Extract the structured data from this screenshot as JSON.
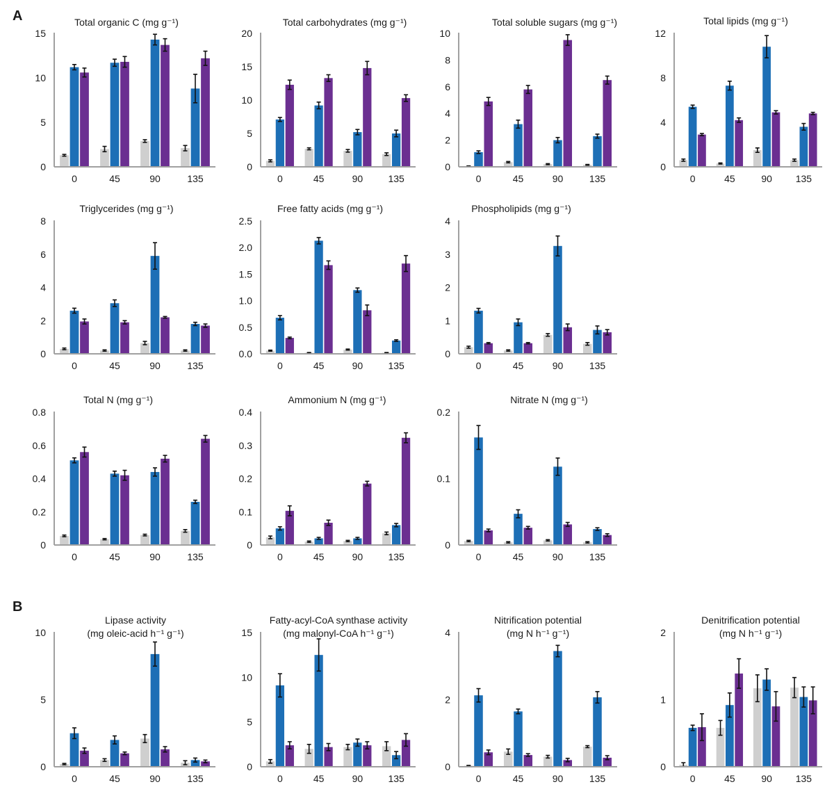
{
  "panel_labels": [
    "A",
    "B"
  ],
  "series": [
    {
      "name": "gray",
      "color": "#cfcfcf"
    },
    {
      "name": "blue",
      "color": "#1d6fb6"
    },
    {
      "name": "purple",
      "color": "#6b2f91"
    }
  ],
  "chart_data": [
    {
      "type": "bar",
      "title": "Total organic C (mg g⁻¹)",
      "categories": [
        "0",
        "45",
        "90",
        "135"
      ],
      "ylim": [
        0,
        15
      ],
      "yticks": [
        "0",
        "5",
        "10",
        "15"
      ],
      "series": [
        {
          "name": "gray",
          "values": [
            1.3,
            2.0,
            2.9,
            2.1
          ],
          "errors": [
            0.1,
            0.3,
            0.15,
            0.3
          ]
        },
        {
          "name": "blue",
          "values": [
            11.2,
            11.7,
            14.3,
            8.8
          ],
          "errors": [
            0.3,
            0.4,
            0.6,
            1.6
          ]
        },
        {
          "name": "purple",
          "values": [
            10.6,
            11.8,
            13.7,
            12.2
          ],
          "errors": [
            0.5,
            0.6,
            0.7,
            0.8
          ]
        }
      ]
    },
    {
      "type": "bar",
      "title": "Total carbohydrates (mg g⁻¹)",
      "categories": [
        "0",
        "45",
        "90",
        "135"
      ],
      "ylim": [
        0,
        20
      ],
      "yticks": [
        "0",
        "5",
        "10",
        "15",
        "20"
      ],
      "series": [
        {
          "name": "gray",
          "values": [
            0.9,
            2.7,
            2.4,
            1.9
          ],
          "errors": [
            0.15,
            0.15,
            0.2,
            0.2
          ]
        },
        {
          "name": "blue",
          "values": [
            7.1,
            9.2,
            5.2,
            5.0
          ],
          "errors": [
            0.3,
            0.5,
            0.4,
            0.5
          ]
        },
        {
          "name": "purple",
          "values": [
            12.3,
            13.3,
            14.8,
            10.3
          ],
          "errors": [
            0.7,
            0.5,
            1.0,
            0.5
          ]
        }
      ]
    },
    {
      "type": "bar",
      "title": "Total soluble sugars (mg g⁻¹)",
      "categories": [
        "0",
        "45",
        "90",
        "135"
      ],
      "ylim": [
        0,
        10
      ],
      "yticks": [
        "0",
        "2",
        "4",
        "6",
        "8",
        "10"
      ],
      "series": [
        {
          "name": "gray",
          "values": [
            0.05,
            0.35,
            0.2,
            0.15
          ],
          "errors": [
            0.02,
            0.05,
            0.04,
            0.03
          ]
        },
        {
          "name": "blue",
          "values": [
            1.1,
            3.2,
            2.0,
            2.3
          ],
          "errors": [
            0.1,
            0.3,
            0.2,
            0.15
          ]
        },
        {
          "name": "purple",
          "values": [
            4.9,
            5.8,
            9.5,
            6.5
          ],
          "errors": [
            0.3,
            0.3,
            0.4,
            0.3
          ]
        }
      ]
    },
    {
      "type": "bar",
      "title": "Total lipids (mg g⁻¹)",
      "categories": [
        "0",
        "45",
        "90",
        "135"
      ],
      "ylim": [
        0,
        12
      ],
      "yticks": [
        "0",
        "4",
        "8",
        "12"
      ],
      "series": [
        {
          "name": "gray",
          "values": [
            0.6,
            0.3,
            1.5,
            0.6
          ],
          "errors": [
            0.1,
            0.05,
            0.2,
            0.1
          ]
        },
        {
          "name": "blue",
          "values": [
            5.4,
            7.3,
            10.8,
            3.6
          ],
          "errors": [
            0.15,
            0.4,
            1.0,
            0.3
          ]
        },
        {
          "name": "purple",
          "values": [
            2.9,
            4.2,
            4.9,
            4.8
          ],
          "errors": [
            0.1,
            0.2,
            0.15,
            0.1
          ]
        }
      ]
    },
    {
      "type": "bar",
      "title": "Triglycerides (mg g⁻¹)",
      "categories": [
        "0",
        "45",
        "90",
        "135"
      ],
      "ylim": [
        0,
        8
      ],
      "yticks": [
        "0",
        "2",
        "4",
        "6",
        "8"
      ],
      "series": [
        {
          "name": "gray",
          "values": [
            0.3,
            0.2,
            0.65,
            0.2
          ],
          "errors": [
            0.05,
            0.04,
            0.1,
            0.04
          ]
        },
        {
          "name": "blue",
          "values": [
            2.6,
            3.05,
            5.9,
            1.8
          ],
          "errors": [
            0.15,
            0.2,
            0.8,
            0.1
          ]
        },
        {
          "name": "purple",
          "values": [
            1.95,
            1.9,
            2.2,
            1.7
          ],
          "errors": [
            0.15,
            0.1,
            0.05,
            0.1
          ]
        }
      ]
    },
    {
      "type": "bar",
      "title": "Free fatty acids (mg g⁻¹)",
      "categories": [
        "0",
        "45",
        "90",
        "135"
      ],
      "ylim": [
        0,
        2.5
      ],
      "yticks": [
        "0.0",
        "0.5",
        "1.0",
        "1.5",
        "2.0",
        "2.5"
      ],
      "series": [
        {
          "name": "gray",
          "values": [
            0.06,
            0.02,
            0.08,
            0.02
          ],
          "errors": [
            0.01,
            0.005,
            0.01,
            0.005
          ]
        },
        {
          "name": "blue",
          "values": [
            0.68,
            2.13,
            1.2,
            0.25
          ],
          "errors": [
            0.04,
            0.06,
            0.04,
            0.015
          ]
        },
        {
          "name": "purple",
          "values": [
            0.3,
            1.67,
            0.82,
            1.7
          ],
          "errors": [
            0.015,
            0.08,
            0.1,
            0.15
          ]
        }
      ]
    },
    {
      "type": "bar",
      "title": "Phospholipids (mg g⁻¹)",
      "categories": [
        "0",
        "45",
        "90",
        "135"
      ],
      "ylim": [
        0,
        4
      ],
      "yticks": [
        "0",
        "1",
        "2",
        "3",
        "4"
      ],
      "series": [
        {
          "name": "gray",
          "values": [
            0.2,
            0.1,
            0.57,
            0.3
          ],
          "errors": [
            0.03,
            0.02,
            0.04,
            0.04
          ]
        },
        {
          "name": "blue",
          "values": [
            1.3,
            0.95,
            3.25,
            0.72
          ],
          "errors": [
            0.07,
            0.1,
            0.3,
            0.12
          ]
        },
        {
          "name": "purple",
          "values": [
            0.32,
            0.32,
            0.8,
            0.65
          ],
          "errors": [
            0.02,
            0.02,
            0.1,
            0.08
          ]
        }
      ]
    },
    {
      "type": "bar",
      "title": "Total N (mg g⁻¹)",
      "categories": [
        "0",
        "45",
        "90",
        "135"
      ],
      "ylim": [
        0,
        0.8
      ],
      "yticks": [
        "0",
        "0.2",
        "0.4",
        "0.6",
        "0.8"
      ],
      "series": [
        {
          "name": "gray",
          "values": [
            0.055,
            0.035,
            0.06,
            0.085
          ],
          "errors": [
            0.005,
            0.004,
            0.005,
            0.008
          ]
        },
        {
          "name": "blue",
          "values": [
            0.51,
            0.43,
            0.44,
            0.26
          ],
          "errors": [
            0.015,
            0.015,
            0.025,
            0.01
          ]
        },
        {
          "name": "purple",
          "values": [
            0.56,
            0.42,
            0.52,
            0.64
          ],
          "errors": [
            0.03,
            0.03,
            0.02,
            0.02
          ]
        }
      ]
    },
    {
      "type": "bar",
      "title": "Ammonium N (mg g⁻¹)",
      "categories": [
        "0",
        "45",
        "90",
        "135"
      ],
      "ylim": [
        0,
        0.4
      ],
      "yticks": [
        "0",
        "0.1",
        "0.2",
        "0.3",
        "0.4"
      ],
      "series": [
        {
          "name": "gray",
          "values": [
            0.023,
            0.01,
            0.012,
            0.035
          ],
          "errors": [
            0.004,
            0.002,
            0.002,
            0.004
          ]
        },
        {
          "name": "blue",
          "values": [
            0.05,
            0.02,
            0.02,
            0.06
          ],
          "errors": [
            0.005,
            0.003,
            0.003,
            0.005
          ]
        },
        {
          "name": "purple",
          "values": [
            0.103,
            0.067,
            0.185,
            0.323
          ],
          "errors": [
            0.015,
            0.008,
            0.007,
            0.015
          ]
        }
      ]
    },
    {
      "type": "bar",
      "title": "Nitrate N (mg g⁻¹)",
      "categories": [
        "0",
        "45",
        "90",
        "135"
      ],
      "ylim": [
        0,
        0.2
      ],
      "yticks": [
        "0",
        "0.1",
        "0.2"
      ],
      "series": [
        {
          "name": "gray",
          "values": [
            0.006,
            0.004,
            0.007,
            0.004
          ],
          "errors": [
            0.001,
            0.001,
            0.001,
            0.001
          ]
        },
        {
          "name": "blue",
          "values": [
            0.162,
            0.047,
            0.118,
            0.024
          ],
          "errors": [
            0.018,
            0.006,
            0.013,
            0.002
          ]
        },
        {
          "name": "purple",
          "values": [
            0.022,
            0.026,
            0.031,
            0.015
          ],
          "errors": [
            0.002,
            0.002,
            0.003,
            0.002
          ]
        }
      ]
    },
    {
      "type": "bar",
      "title": "Lipase activity",
      "subtitle": "(mg oleic-acid h⁻¹ g⁻¹)",
      "categories": [
        "0",
        "45",
        "90",
        "135"
      ],
      "ylim": [
        0,
        10
      ],
      "yticks": [
        "0",
        "5",
        "10"
      ],
      "series": [
        {
          "name": "gray",
          "values": [
            0.2,
            0.5,
            2.1,
            0.3
          ],
          "errors": [
            0.05,
            0.1,
            0.3,
            0.15
          ]
        },
        {
          "name": "blue",
          "values": [
            2.5,
            2.0,
            8.4,
            0.5
          ],
          "errors": [
            0.4,
            0.3,
            0.9,
            0.15
          ]
        },
        {
          "name": "purple",
          "values": [
            1.2,
            1.0,
            1.3,
            0.4
          ],
          "errors": [
            0.2,
            0.1,
            0.2,
            0.1
          ]
        }
      ]
    },
    {
      "type": "bar",
      "title": "Fatty-acyl-CoA synthase activity",
      "subtitle": "(mg malonyl-CoA h⁻¹ g⁻¹)",
      "categories": [
        "0",
        "45",
        "90",
        "135"
      ],
      "ylim": [
        0,
        15
      ],
      "yticks": [
        "0",
        "5",
        "10",
        "15"
      ],
      "series": [
        {
          "name": "gray",
          "values": [
            0.6,
            2.0,
            2.2,
            2.3
          ],
          "errors": [
            0.2,
            0.5,
            0.3,
            0.5
          ]
        },
        {
          "name": "blue",
          "values": [
            9.1,
            12.5,
            2.7,
            1.3
          ],
          "errors": [
            1.3,
            1.8,
            0.4,
            0.4
          ]
        },
        {
          "name": "purple",
          "values": [
            2.4,
            2.2,
            2.4,
            3.0
          ],
          "errors": [
            0.4,
            0.4,
            0.4,
            0.7
          ]
        }
      ]
    },
    {
      "type": "bar",
      "title": "Nitrification potential",
      "subtitle": "(mg N h⁻¹ g⁻¹)",
      "categories": [
        "0",
        "45",
        "90",
        "135"
      ],
      "ylim": [
        0,
        4
      ],
      "yticks": [
        "0",
        "2",
        "4"
      ],
      "series": [
        {
          "name": "gray",
          "values": [
            0.03,
            0.45,
            0.3,
            0.6
          ],
          "errors": [
            0.01,
            0.08,
            0.04,
            0.03
          ]
        },
        {
          "name": "blue",
          "values": [
            2.13,
            1.65,
            3.45,
            2.07
          ],
          "errors": [
            0.2,
            0.07,
            0.17,
            0.17
          ]
        },
        {
          "name": "purple",
          "values": [
            0.43,
            0.35,
            0.2,
            0.27
          ],
          "errors": [
            0.07,
            0.04,
            0.05,
            0.06
          ]
        }
      ]
    },
    {
      "type": "bar",
      "title": "Denitrification potential",
      "subtitle": "(mg N h⁻¹ g⁻¹)",
      "categories": [
        "0",
        "45",
        "90",
        "135"
      ],
      "ylim": [
        0,
        2
      ],
      "yticks": [
        "0",
        "1",
        "2"
      ],
      "series": [
        {
          "name": "gray",
          "values": [
            0.03,
            0.58,
            1.17,
            1.18
          ],
          "errors": [
            0.03,
            0.11,
            0.2,
            0.15
          ]
        },
        {
          "name": "blue",
          "values": [
            0.58,
            0.92,
            1.3,
            1.04
          ],
          "errors": [
            0.04,
            0.18,
            0.16,
            0.15
          ]
        },
        {
          "name": "purple",
          "values": [
            0.59,
            1.39,
            0.9,
            0.99
          ],
          "errors": [
            0.2,
            0.22,
            0.22,
            0.2
          ]
        }
      ]
    }
  ]
}
